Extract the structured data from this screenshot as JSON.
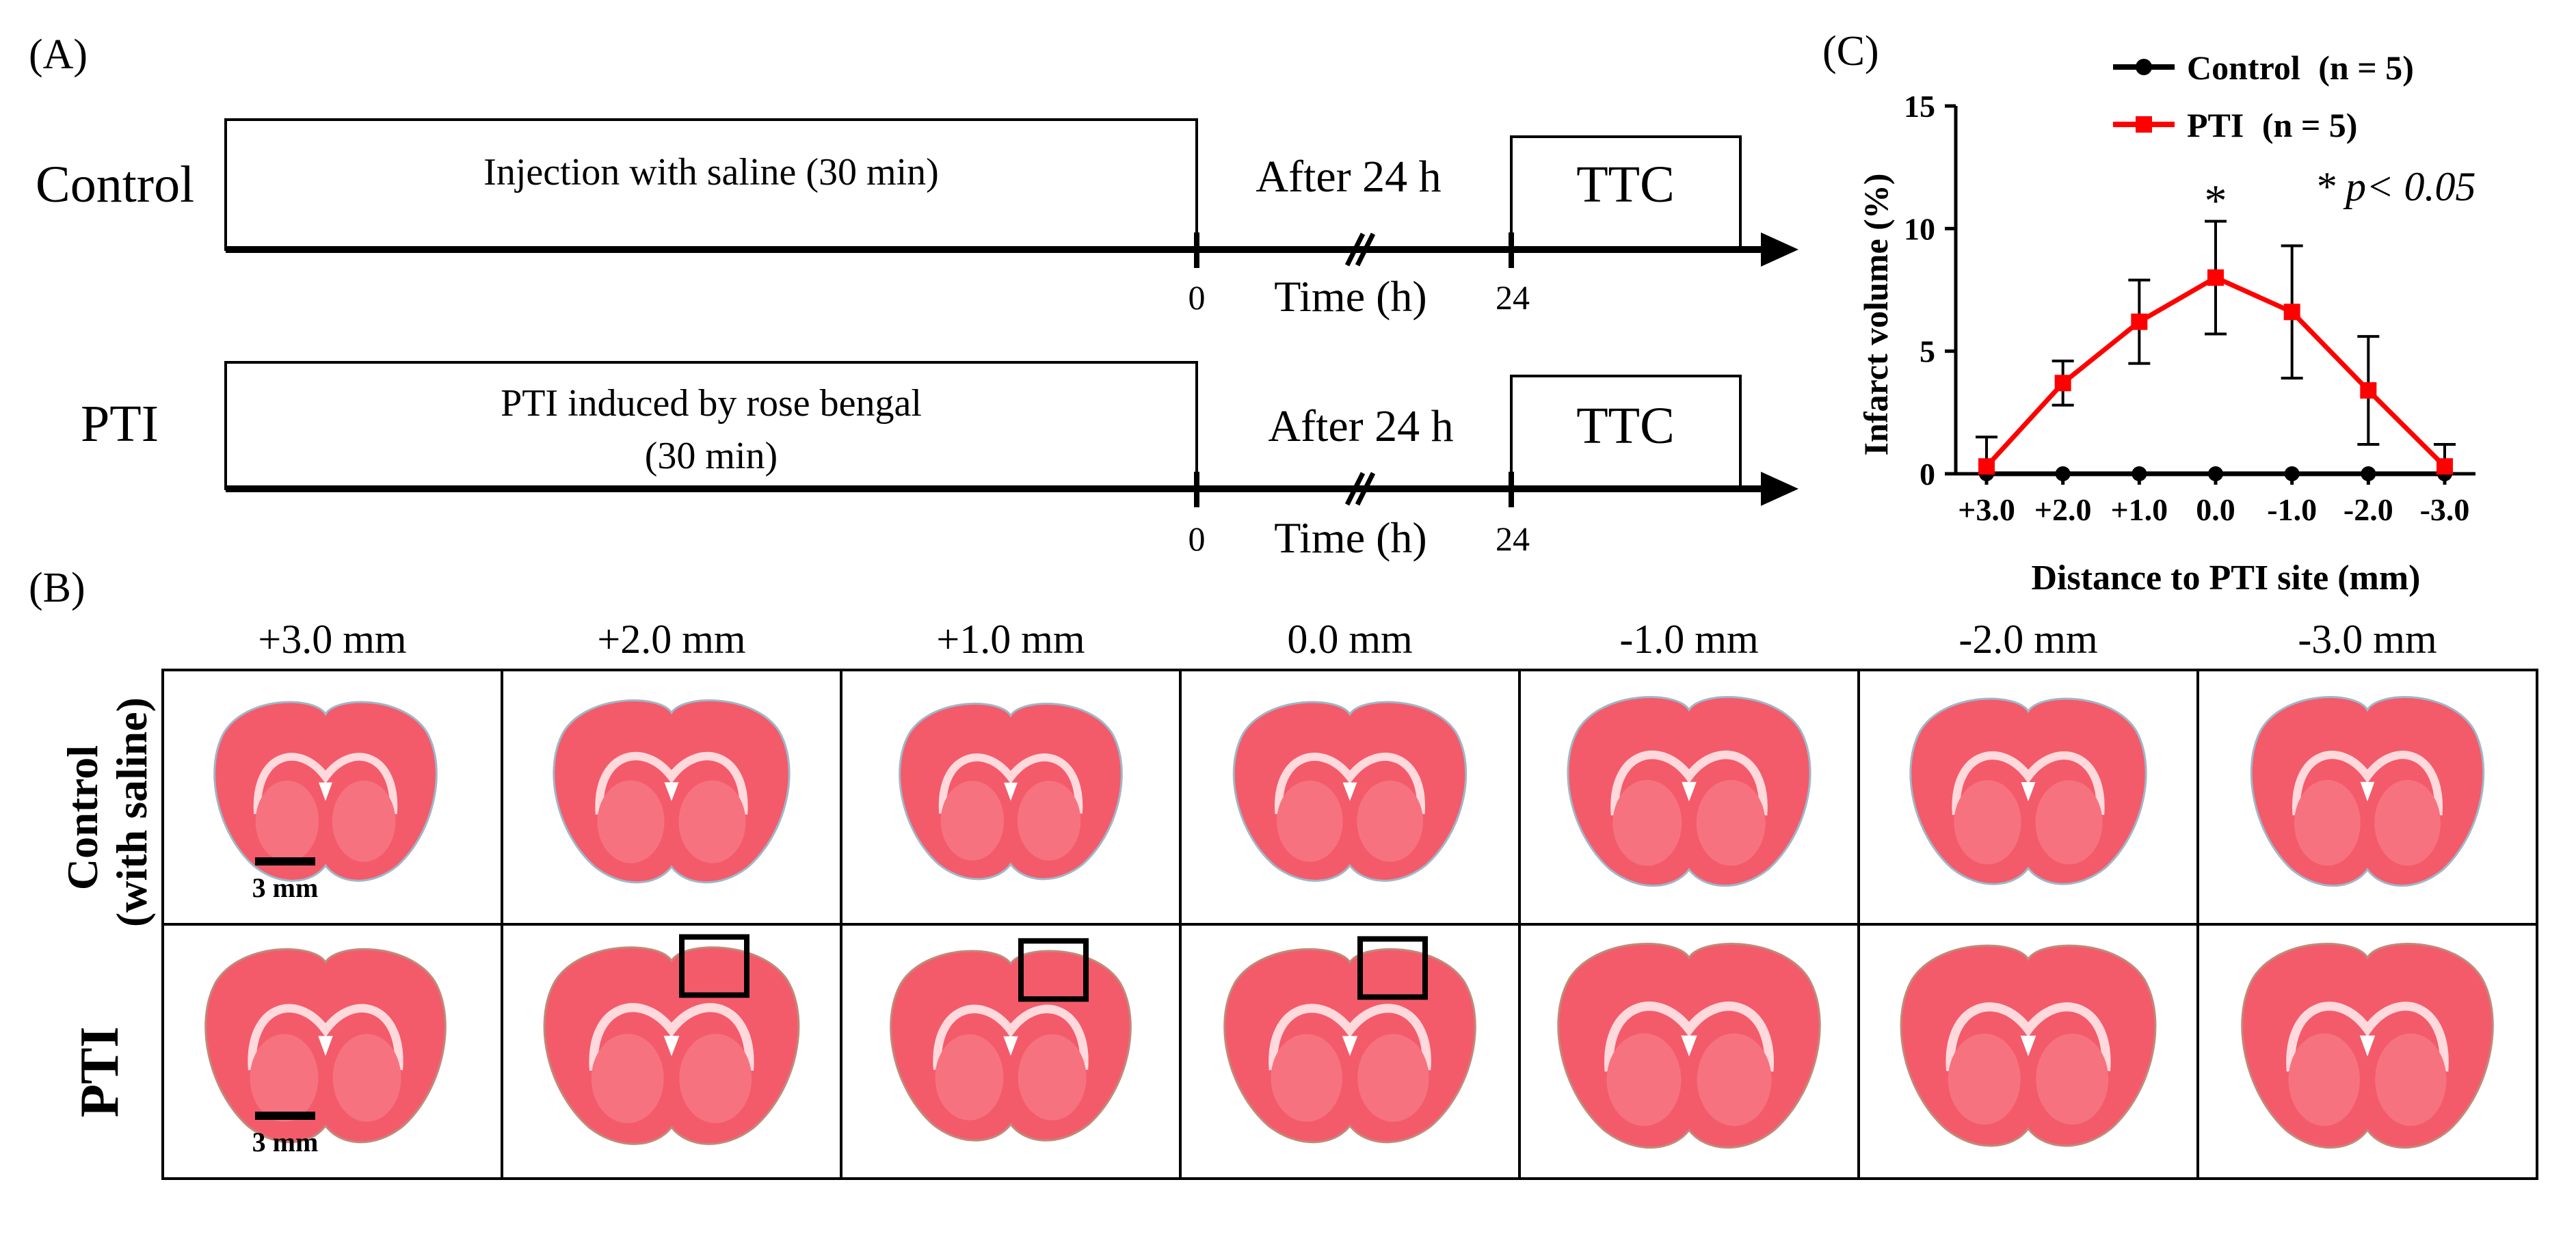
{
  "panel_labels": {
    "a": "(A)",
    "b": "(B)",
    "c": "(C)"
  },
  "timeline": {
    "rows": [
      {
        "group": "Control",
        "box_text": [
          "Injection with saline (30 min)"
        ],
        "after": "After 24 h",
        "assay": "TTC",
        "tick_start": "0",
        "tick_end": "24",
        "axis_label": "Time (h)"
      },
      {
        "group": "PTI",
        "box_text": [
          "PTI induced by rose bengal",
          "(30 min)"
        ],
        "after": "After 24 h",
        "assay": "TTC",
        "tick_start": "0",
        "tick_end": "24",
        "axis_label": "Time (h)"
      }
    ]
  },
  "slices": {
    "positions": [
      "+3.0 mm",
      "+2.0 mm",
      "+1.0 mm",
      "0.0 mm",
      "-1.0 mm",
      "-2.0 mm",
      "-3.0 mm"
    ],
    "rows": [
      {
        "label_lines": [
          "Control",
          "(with saline)"
        ],
        "highlight": [
          false,
          false,
          false,
          false,
          false,
          false,
          false
        ]
      },
      {
        "label_lines": [
          "PTI"
        ],
        "highlight": [
          false,
          true,
          true,
          true,
          false,
          false,
          false
        ]
      }
    ],
    "scale_bar": "3 mm"
  },
  "chart_data": {
    "type": "line",
    "x_categories": [
      "+3.0",
      "+2.0",
      "+1.0",
      "0.0",
      "-1.0",
      "-2.0",
      "-3.0"
    ],
    "xlabel": "Distance to PTI site (mm)",
    "ylabel": "Infarct volume (%)",
    "ylim": [
      0,
      15
    ],
    "yticks": [
      "0",
      "5",
      "10",
      "15"
    ],
    "grid": false,
    "legend_position": "top-right",
    "series": [
      {
        "name": "Control",
        "n_label": "(n = 5)",
        "color": "#000000",
        "marker": "circle",
        "values": [
          0,
          0,
          0,
          0,
          0,
          0,
          0
        ],
        "errors": [
          0,
          0,
          0,
          0,
          0,
          0,
          0
        ]
      },
      {
        "name": "PTI",
        "n_label": "(n = 5)",
        "color": "#ff0000",
        "marker": "square",
        "values": [
          0.3,
          3.7,
          6.2,
          8.0,
          6.6,
          3.4,
          0.3
        ],
        "errors": [
          1.2,
          0.9,
          1.7,
          2.3,
          2.7,
          2.2,
          0.9
        ]
      }
    ],
    "annotations": [
      {
        "text": "*",
        "at_category": "0.0"
      },
      {
        "text": "* p< 0.05"
      }
    ]
  }
}
